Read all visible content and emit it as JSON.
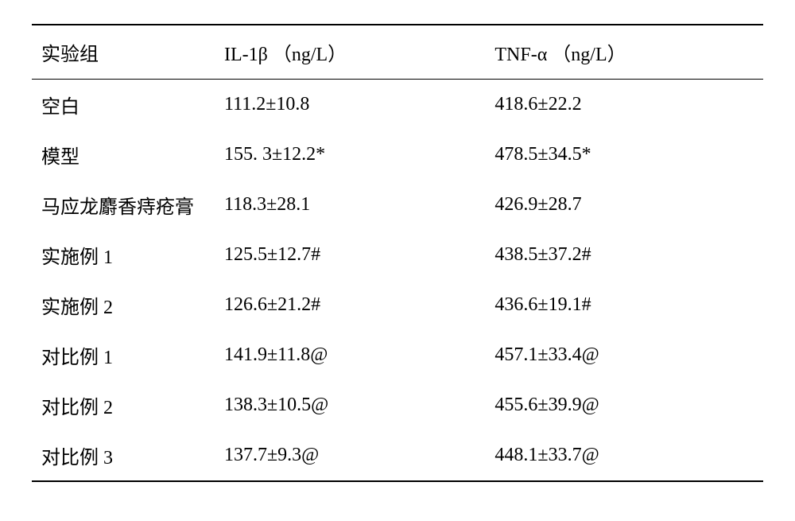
{
  "table": {
    "columns": [
      {
        "key": "group",
        "label": "实验组"
      },
      {
        "key": "il1b",
        "label": "IL-1β （ng/L）"
      },
      {
        "key": "tnfa",
        "label": "TNF-α （ng/L）"
      }
    ],
    "rows": [
      {
        "group": "空白",
        "il1b": "111.2±10.8",
        "tnfa": "418.6±22.2"
      },
      {
        "group": "模型",
        "il1b": "155. 3±12.2*",
        "tnfa": "478.5±34.5*"
      },
      {
        "group": "马应龙麝香痔疮膏",
        "il1b": "118.3±28.1",
        "tnfa": "426.9±28.7"
      },
      {
        "group": "实施例 1",
        "il1b": "125.5±12.7#",
        "tnfa": "438.5±37.2#"
      },
      {
        "group": "实施例 2",
        "il1b": "126.6±21.2#",
        "tnfa": "436.6±19.1#"
      },
      {
        "group": "对比例 1",
        "il1b": "141.9±11.8@",
        "tnfa": "457.1±33.4@"
      },
      {
        "group": "对比例 2",
        "il1b": "138.3±10.5@",
        "tnfa": "455.6±39.9@"
      },
      {
        "group": "对比例 3",
        "il1b": "137.7±9.3@",
        "tnfa": "448.1±33.7@"
      }
    ],
    "styling": {
      "font_family": "SimSun",
      "font_size": 24,
      "text_color": "#000000",
      "background_color": "#ffffff",
      "border_color": "#000000",
      "top_border_width": 2,
      "header_bottom_border_width": 1.5,
      "bottom_border_width": 2,
      "row_padding_vertical": 14,
      "col_widths_percent": [
        25,
        37,
        38
      ]
    }
  }
}
